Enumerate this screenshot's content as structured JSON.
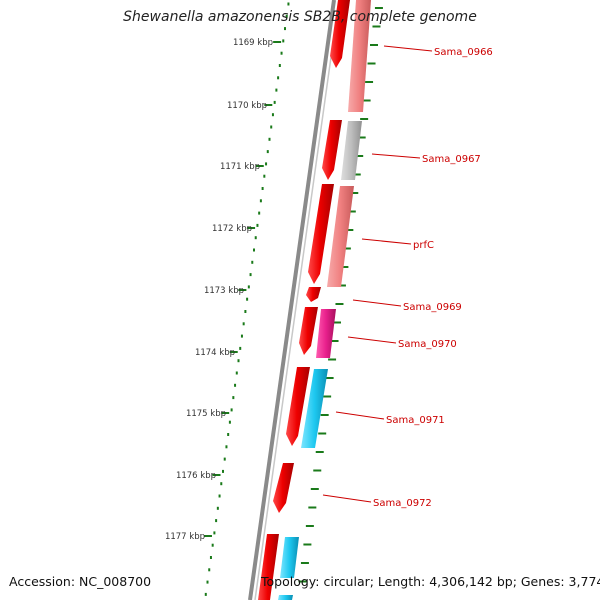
{
  "title": "Shewanella amazonensis SB2B, complete genome",
  "footer": {
    "accession": "Accession: NC_008700",
    "summary": "Topology: circular; Length: 4,306,142 bp; Genes: 3,774"
  },
  "colors": {
    "backbone": "#7a7a7a",
    "tick": "#1a7a1a",
    "cds_forward": "#ee0000",
    "label": "#cc0000",
    "category_pink": "#f08080",
    "category_gray": "#bdbdbd",
    "category_magenta": "#e8208c",
    "category_cyan": "#1ec8f0"
  },
  "scale_ticks": [
    {
      "label": "1169 kbp"
    },
    {
      "label": "1170 kbp"
    },
    {
      "label": "1171 kbp"
    },
    {
      "label": "1172 kbp"
    },
    {
      "label": "1173 kbp"
    },
    {
      "label": "1174 kbp"
    },
    {
      "label": "1175 kbp"
    },
    {
      "label": "1176 kbp"
    },
    {
      "label": "1177 kbp"
    }
  ],
  "genes": [
    {
      "name": "Sama_0966",
      "category": "pink"
    },
    {
      "name": "Sama_0967",
      "category": "gray"
    },
    {
      "name": "prfC",
      "category": "pink"
    },
    {
      "name": "Sama_0969",
      "category": "none"
    },
    {
      "name": "Sama_0970",
      "category": "magenta"
    },
    {
      "name": "Sama_0971",
      "category": "cyan"
    },
    {
      "name": "Sama_0972",
      "category": "none"
    }
  ]
}
